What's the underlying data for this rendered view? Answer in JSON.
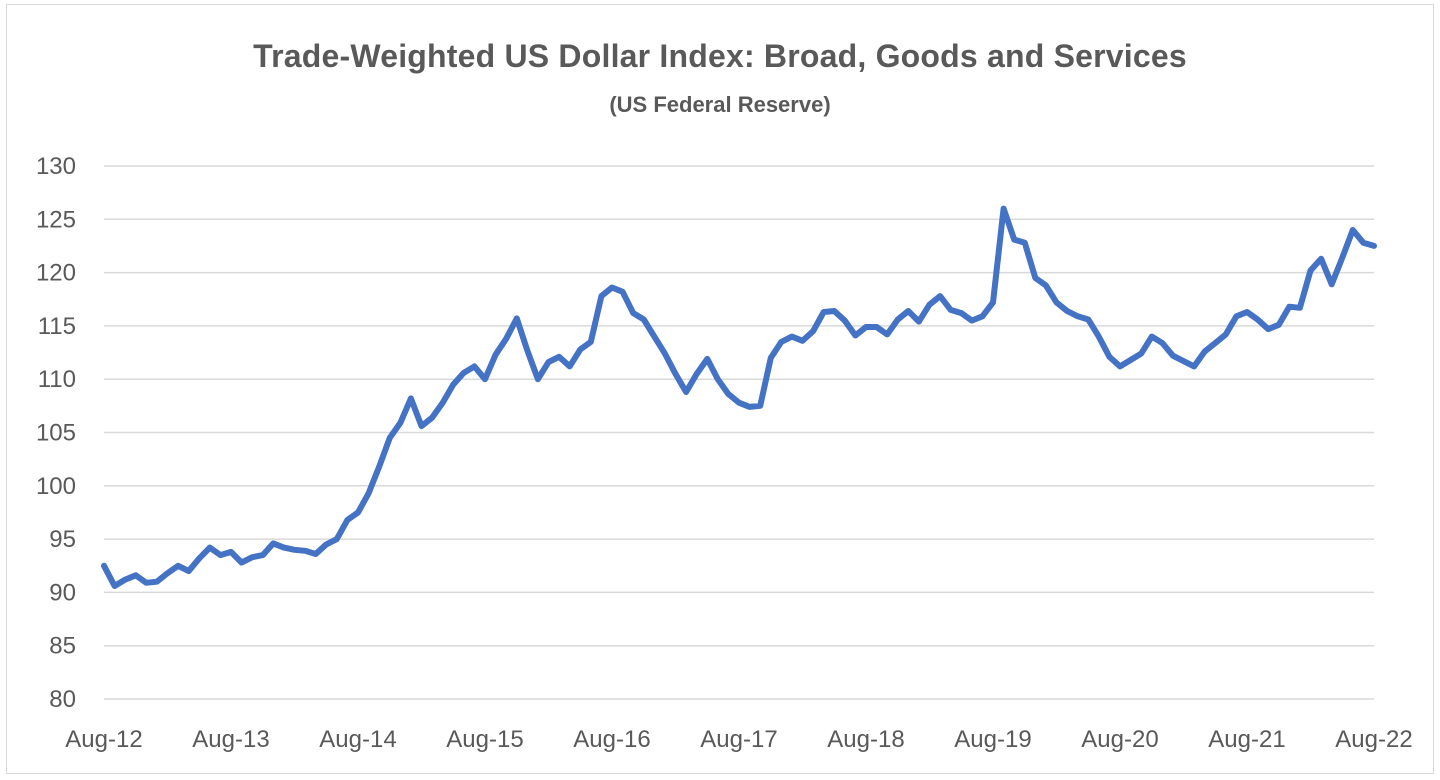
{
  "chart_data": {
    "type": "line",
    "title": "Trade-Weighted US Dollar Index: Broad, Goods and Services",
    "subtitle": "(US Federal Reserve)",
    "xlabel": "",
    "ylabel": "",
    "ylim": [
      80,
      130
    ],
    "y_ticks": [
      80,
      85,
      90,
      95,
      100,
      105,
      110,
      115,
      120,
      125,
      130
    ],
    "x_tick_labels": [
      "Aug-12",
      "Aug-13",
      "Aug-14",
      "Aug-15",
      "Aug-16",
      "Aug-17",
      "Aug-18",
      "Aug-19",
      "Aug-20",
      "Aug-21",
      "Aug-22"
    ],
    "grid": "horizontal",
    "legend": "none",
    "line_color": "#4472c4",
    "series": [
      {
        "x": [
          "2012-08",
          "2012-09",
          "2012-10",
          "2012-11",
          "2012-12",
          "2013-01",
          "2013-02",
          "2013-03",
          "2013-04",
          "2013-05",
          "2013-06",
          "2013-07",
          "2013-08",
          "2013-09",
          "2013-10",
          "2013-11",
          "2013-12",
          "2014-01",
          "2014-02",
          "2014-03",
          "2014-04",
          "2014-05",
          "2014-06",
          "2014-07",
          "2014-08",
          "2014-09",
          "2014-10",
          "2014-11",
          "2014-12",
          "2015-01",
          "2015-02",
          "2015-03",
          "2015-04",
          "2015-05",
          "2015-06",
          "2015-07",
          "2015-08",
          "2015-09",
          "2015-10",
          "2015-11",
          "2015-12",
          "2016-01",
          "2016-02",
          "2016-03",
          "2016-04",
          "2016-05",
          "2016-06",
          "2016-07",
          "2016-08",
          "2016-09",
          "2016-10",
          "2016-11",
          "2016-12",
          "2017-01",
          "2017-02",
          "2017-03",
          "2017-04",
          "2017-05",
          "2017-06",
          "2017-07",
          "2017-08",
          "2017-09",
          "2017-10",
          "2017-11",
          "2017-12",
          "2018-01",
          "2018-02",
          "2018-03",
          "2018-04",
          "2018-05",
          "2018-06",
          "2018-07",
          "2018-08",
          "2018-09",
          "2018-10",
          "2018-11",
          "2018-12",
          "2019-01",
          "2019-02",
          "2019-03",
          "2019-04",
          "2019-05",
          "2019-06",
          "2019-07",
          "2019-08",
          "2019-09",
          "2019-10",
          "2019-11",
          "2019-12",
          "2020-01",
          "2020-02",
          "2020-03",
          "2020-04",
          "2020-05",
          "2020-06",
          "2020-07",
          "2020-08",
          "2020-09",
          "2020-10",
          "2020-11",
          "2020-12",
          "2021-01",
          "2021-02",
          "2021-03",
          "2021-04",
          "2021-05",
          "2021-06",
          "2021-07",
          "2021-08",
          "2021-09",
          "2021-10",
          "2021-11",
          "2021-12",
          "2022-01",
          "2022-02",
          "2022-03",
          "2022-04",
          "2022-05",
          "2022-06",
          "2022-07",
          "2022-08"
        ],
        "values": [
          92.5,
          90.6,
          91.2,
          91.6,
          90.9,
          91.0,
          91.8,
          92.5,
          92.0,
          93.2,
          94.2,
          93.5,
          93.8,
          92.8,
          93.3,
          93.5,
          94.6,
          94.2,
          94.0,
          93.9,
          93.6,
          94.5,
          95.0,
          96.8,
          97.5,
          99.3,
          101.8,
          104.5,
          105.9,
          108.2,
          105.6,
          106.4,
          107.8,
          109.5,
          110.6,
          111.2,
          110.0,
          112.3,
          113.8,
          115.7,
          112.7,
          110.0,
          111.6,
          112.1,
          111.2,
          112.8,
          113.5,
          117.8,
          118.6,
          118.2,
          116.2,
          115.6,
          114.0,
          112.4,
          110.5,
          108.8,
          110.5,
          111.9,
          110.0,
          108.6,
          107.8,
          107.4,
          107.5,
          112.0,
          113.5,
          114.0,
          113.6,
          114.5,
          116.3,
          116.4,
          115.5,
          114.1,
          114.9,
          114.9,
          114.2,
          115.6,
          116.4,
          115.4,
          117.0,
          117.8,
          116.5,
          116.2,
          115.5,
          115.9,
          117.2,
          126.0,
          123.1,
          122.8,
          119.5,
          118.8,
          117.2,
          116.4,
          115.9,
          115.6,
          114.0,
          112.1,
          111.2,
          111.8,
          112.4,
          114.0,
          113.4,
          112.2,
          111.7,
          111.2,
          112.6,
          113.4,
          114.2,
          115.9,
          116.3,
          115.6,
          114.7,
          115.1,
          116.8,
          116.7,
          120.2,
          121.3,
          118.9,
          121.4,
          124.0,
          122.8,
          122.5
        ]
      }
    ]
  }
}
